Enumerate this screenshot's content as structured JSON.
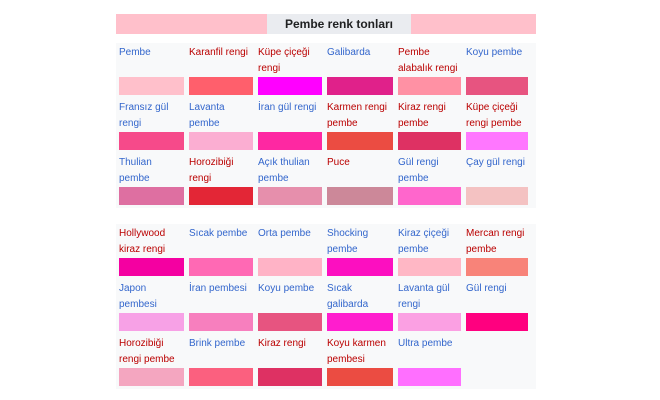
{
  "header": {
    "title": "Pembe renk tonları",
    "left_swatch_color": "#ffc0cb",
    "right_swatch_color": "#ffc0cb"
  },
  "tables": [
    {
      "rows": [
        [
          {
            "label": "Pembe",
            "color": "#ffc0cb",
            "link": "blue"
          },
          {
            "label": "Karanfil rengi",
            "color": "#ff5f6c",
            "link": "red"
          },
          {
            "label": "Küpe çiçeği rengi",
            "color": "#ff00ff",
            "link": "red"
          },
          {
            "label": "Galibarda",
            "color": "#e0218a",
            "link": "blue"
          },
          {
            "label": "Pembe alabalık rengi",
            "color": "#ff91a4",
            "link": "red"
          },
          {
            "label": "Koyu pembe",
            "color": "#e75480",
            "link": "blue"
          }
        ],
        [
          {
            "label": "Fransız gül rengi",
            "color": "#f64a8a",
            "link": "blue"
          },
          {
            "label": "Lavanta pembe",
            "color": "#fbaed2",
            "link": "blue"
          },
          {
            "label": "İran gül rengi",
            "color": "#fe28a2",
            "link": "blue"
          },
          {
            "label": "Karmen rengi pembe",
            "color": "#eb4c42",
            "link": "red"
          },
          {
            "label": "Kiraz rengi pembe",
            "color": "#de3163",
            "link": "red"
          },
          {
            "label": "Küpe çiçeği rengi pembe",
            "color": "#ff77ff",
            "link": "red"
          }
        ],
        [
          {
            "label": "Thulian pembe",
            "color": "#de6fa1",
            "link": "blue"
          },
          {
            "label": "Horozibiği rengi",
            "color": "#e32636",
            "link": "red"
          },
          {
            "label": "Açık thulian pembe",
            "color": "#e68fac",
            "link": "blue"
          },
          {
            "label": "Puce",
            "color": "#cc8899",
            "link": "red"
          },
          {
            "label": "Gül rengi pembe",
            "color": "#ff66cc",
            "link": "blue"
          },
          {
            "label": "Çay gül rengi",
            "color": "#f4c2c2",
            "link": "blue"
          }
        ]
      ]
    },
    {
      "rows": [
        [
          {
            "label": "Hollywood kiraz rengi",
            "color": "#f400a1",
            "link": "red"
          },
          {
            "label": "Sıcak pembe",
            "color": "#ff69b4",
            "link": "blue"
          },
          {
            "label": "Orta pembe",
            "color": "#ffb3c6",
            "link": "blue"
          },
          {
            "label": "Shocking pembe",
            "color": "#fc0fc0",
            "link": "blue"
          },
          {
            "label": "Kiraz çiçeği pembe",
            "color": "#ffb7c5",
            "link": "blue"
          },
          {
            "label": "Mercan rengi pembe",
            "color": "#f88379",
            "link": "red"
          }
        ],
        [
          {
            "label": "Japon pembesi",
            "color": "#f7a1e6",
            "link": "blue"
          },
          {
            "label": "İran pembesi",
            "color": "#f77fbe",
            "link": "blue"
          },
          {
            "label": "Koyu pembe",
            "color": "#e75480",
            "link": "blue"
          },
          {
            "label": "Sıcak galibarda",
            "color": "#ff1dce",
            "link": "blue"
          },
          {
            "label": "Lavanta gül rengi",
            "color": "#fba0e3",
            "link": "blue"
          },
          {
            "label": "Gül rengi",
            "color": "#ff007f",
            "link": "blue"
          }
        ],
        [
          {
            "label": "Horozibiği rengi pembe",
            "color": "#f4a6c0",
            "link": "red"
          },
          {
            "label": "Brink pembe",
            "color": "#fb607f",
            "link": "blue"
          },
          {
            "label": "Kiraz rengi",
            "color": "#de3163",
            "link": "red"
          },
          {
            "label": "Koyu karmen pembesi",
            "color": "#eb4c42",
            "link": "red"
          },
          {
            "label": "Ultra pembe",
            "color": "#ff6fff",
            "link": "blue"
          }
        ]
      ]
    }
  ]
}
